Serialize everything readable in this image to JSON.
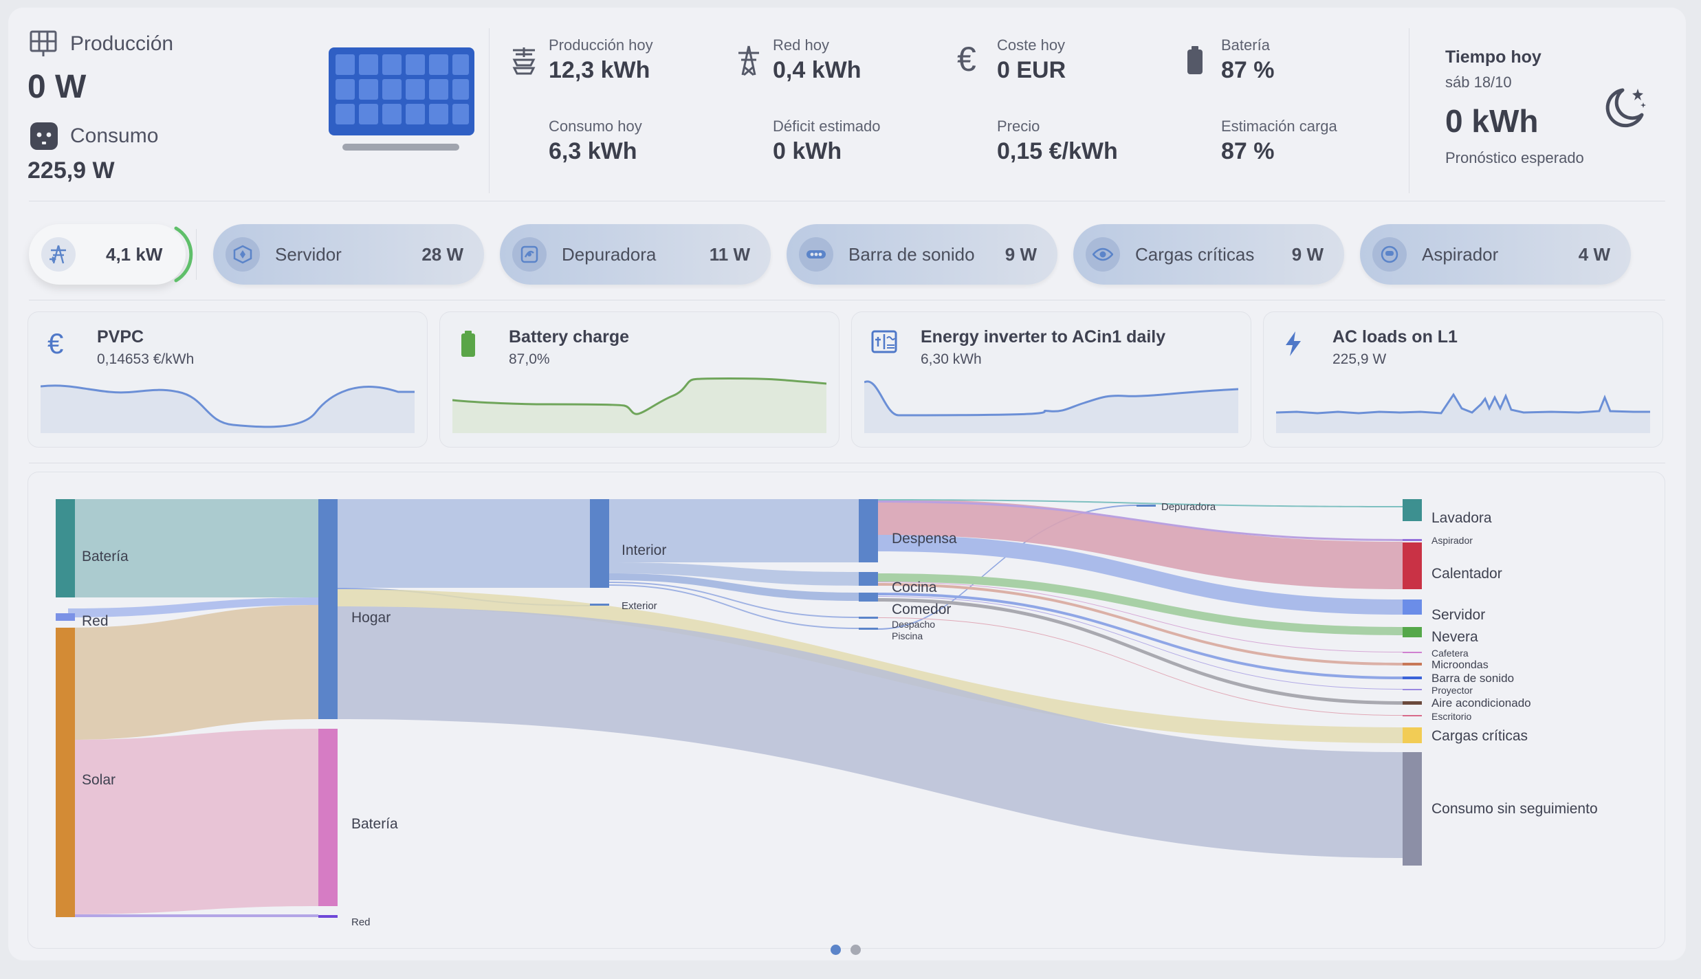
{
  "summary": {
    "production_label": "Producción",
    "production_value": "0 W",
    "consumption_label": "Consumo",
    "consumption_value": "225,9 W"
  },
  "stats": [
    {
      "label": "Producción hoy",
      "value": "12,3 kWh",
      "icon": "solar-tower-icon"
    },
    {
      "label": "Red hoy",
      "value": "0,4 kWh",
      "icon": "transmission-tower-icon"
    },
    {
      "label": "Coste hoy",
      "value": "0 EUR",
      "icon": "euro-icon"
    },
    {
      "label": "Batería",
      "value": "87 %",
      "icon": "battery-icon"
    },
    {
      "label": "Consumo hoy",
      "value": "6,3 kWh"
    },
    {
      "label": "Déficit estimado",
      "value": "0 kWh"
    },
    {
      "label": "Precio",
      "value": "0,15 €/kWh"
    },
    {
      "label": "Estimación carga",
      "value": "87 %"
    }
  ],
  "weather": {
    "title": "Tiempo hoy",
    "date": "sáb 18/10",
    "value": "0 kWh",
    "caption": "Pronóstico esperado",
    "icon": "moon-stars-icon"
  },
  "power_chip": {
    "value": "4,1 kW",
    "icon": "grid-tower-icon"
  },
  "devices": [
    {
      "name": "Servidor",
      "value": "28 W",
      "icon": "server-icon"
    },
    {
      "name": "Depuradora",
      "value": "11 W",
      "icon": "pump-icon"
    },
    {
      "name": "Barra de sonido",
      "value": "9 W",
      "icon": "soundbar-icon"
    },
    {
      "name": "Cargas críticas",
      "value": "9 W",
      "icon": "eye-icon"
    },
    {
      "name": "Aspirador",
      "value": "4 W",
      "icon": "robot-vacuum-icon"
    }
  ],
  "sensors": [
    {
      "title": "PVPC",
      "value": "0,14653 €/kWh",
      "icon": "euro-icon",
      "color": "#6b8fd6"
    },
    {
      "title": "Battery charge",
      "value": "87,0%",
      "icon": "battery-icon",
      "color": "#6fa55a"
    },
    {
      "title": "Energy inverter to ACin1 daily",
      "value": "6,30 kWh",
      "icon": "inverter-icon",
      "color": "#6b8fd6"
    },
    {
      "title": "AC loads on L1",
      "value": "225,9 W",
      "icon": "flash-icon",
      "color": "#6b8fd6"
    }
  ],
  "sankey": {
    "col1": [
      "Batería",
      "Red",
      "Solar"
    ],
    "col2": [
      "Hogar",
      "Batería",
      "Red"
    ],
    "col3": [
      "Interior",
      "Exterior"
    ],
    "col4": [
      "Despensa",
      "Cocina",
      "Comedor",
      "Despacho",
      "Piscina",
      "Depuradora"
    ],
    "col5": [
      "Lavadora",
      "Aspirador",
      "Calentador",
      "Servidor",
      "Nevera",
      "Cafetera",
      "Microondas",
      "Barra de sonido",
      "Proyector",
      "Aire acondicionado",
      "Escritorio",
      "Cargas críticas",
      "Consumo sin seguimiento"
    ]
  },
  "pager": {
    "pages": 2,
    "active": 1
  },
  "colors": {
    "accent": "#5b84c9",
    "battery_node": "#3d9090",
    "solar_node": "#d38b35",
    "battery_sink": "#d67cc4",
    "calentador": "#c93245",
    "nevera": "#55a84a",
    "cargas_criticas": "#f2cc55",
    "consumo_sin_seguimiento": "#8c8fa6",
    "green_ring": "#5fbf6a"
  }
}
